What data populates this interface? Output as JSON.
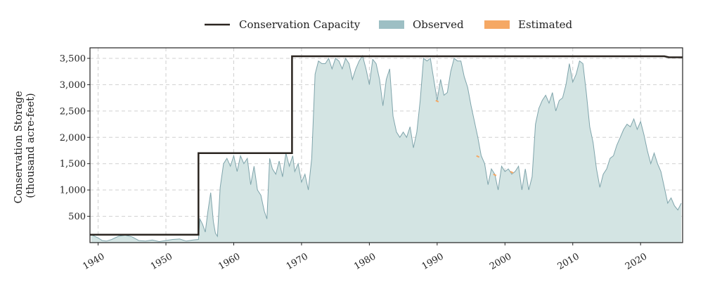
{
  "chart_data": {
    "type": "area",
    "title": "",
    "xlabel": "",
    "ylabel": [
      "Conservation Storage",
      "(thousand acre-feet)"
    ],
    "xlim": [
      1938.8,
      2026.2
    ],
    "ylim": [
      0,
      3700
    ],
    "xticks": [
      1940,
      1950,
      1960,
      1970,
      1980,
      1990,
      2000,
      2010,
      2020
    ],
    "xtick_labels": [
      "1940",
      "1950",
      "1960",
      "1970",
      "1980",
      "1990",
      "2000",
      "2010",
      "2020"
    ],
    "yticks": [
      500,
      1000,
      1500,
      2000,
      2500,
      3000,
      3500
    ],
    "ytick_labels": [
      "500",
      "1,000",
      "1,500",
      "2,000",
      "2,500",
      "3,000",
      "3,500"
    ],
    "grid": true,
    "legend_position": "top-center",
    "series": [
      {
        "name": "Conservation Capacity",
        "kind": "step-line",
        "color": "#2b2520",
        "x": [
          1938.8,
          1954.8,
          1954.8,
          1968.6,
          1968.6,
          2023.5,
          2024.2,
          2026.2
        ],
        "y": [
          150,
          150,
          1700,
          1700,
          3540,
          3540,
          3520,
          3520
        ]
      },
      {
        "name": "Observed",
        "kind": "area",
        "color": "#9dbfc4",
        "fill": "#d3e4e3",
        "x": [
          1939.0,
          1940.0,
          1940.6,
          1941.2,
          1942.0,
          1943.0,
          1944.0,
          1945.0,
          1946.0,
          1947.0,
          1948.0,
          1949.0,
          1950.0,
          1951.0,
          1952.0,
          1953.0,
          1954.0,
          1954.8,
          1955.0,
          1955.4,
          1955.8,
          1956.2,
          1956.6,
          1957.0,
          1957.3,
          1957.6,
          1958.0,
          1958.5,
          1959.0,
          1959.5,
          1960.0,
          1960.5,
          1961.0,
          1961.5,
          1962.0,
          1962.5,
          1963.0,
          1963.5,
          1964.0,
          1964.5,
          1964.9,
          1965.3,
          1965.7,
          1966.2,
          1966.7,
          1967.2,
          1967.7,
          1968.2,
          1968.7,
          1969.0,
          1969.5,
          1970.0,
          1970.5,
          1971.0,
          1971.5,
          1972.0,
          1972.5,
          1973.0,
          1973.5,
          1974.0,
          1974.5,
          1975.0,
          1975.5,
          1976.0,
          1976.5,
          1977.0,
          1977.5,
          1978.0,
          1978.5,
          1979.0,
          1979.5,
          1980.0,
          1980.5,
          1981.0,
          1981.5,
          1982.0,
          1982.5,
          1983.0,
          1983.5,
          1984.0,
          1984.5,
          1985.0,
          1985.5,
          1986.0,
          1986.5,
          1987.0,
          1987.5,
          1988.0,
          1988.5,
          1989.0,
          1989.5,
          1990.0,
          1990.5,
          1991.0,
          1991.5,
          1992.0,
          1992.5,
          1993.0,
          1993.5,
          1994.0,
          1994.5,
          1995.0,
          1995.5,
          1996.0,
          1996.5,
          1997.0,
          1997.5,
          1998.0,
          1998.5,
          1999.0,
          1999.5,
          2000.0,
          2000.5,
          2001.0,
          2001.5,
          2002.0,
          2002.5,
          2003.0,
          2003.5,
          2004.0,
          2004.5,
          2005.0,
          2005.5,
          2006.0,
          2006.5,
          2007.0,
          2007.5,
          2008.0,
          2008.5,
          2009.0,
          2009.5,
          2010.0,
          2010.5,
          2011.0,
          2011.5,
          2012.0,
          2012.5,
          2013.0,
          2013.5,
          2014.0,
          2014.5,
          2015.0,
          2015.5,
          2016.0,
          2016.5,
          2017.0,
          2017.5,
          2018.0,
          2018.5,
          2019.0,
          2019.5,
          2020.0,
          2020.5,
          2021.0,
          2021.5,
          2022.0,
          2022.5,
          2023.0,
          2023.5,
          2024.0,
          2024.5,
          2025.0,
          2025.5,
          2026.0
        ],
        "y": [
          150,
          90,
          40,
          30,
          60,
          120,
          140,
          110,
          40,
          30,
          50,
          20,
          40,
          60,
          70,
          30,
          50,
          60,
          450,
          350,
          200,
          600,
          950,
          400,
          180,
          120,
          1050,
          1500,
          1600,
          1450,
          1650,
          1350,
          1650,
          1500,
          1600,
          1100,
          1450,
          1000,
          900,
          600,
          450,
          1600,
          1400,
          1300,
          1550,
          1250,
          1700,
          1450,
          1650,
          1350,
          1500,
          1150,
          1300,
          1000,
          1600,
          3200,
          3450,
          3400,
          3400,
          3500,
          3300,
          3500,
          3450,
          3300,
          3500,
          3400,
          3100,
          3300,
          3450,
          3550,
          3300,
          3000,
          3480,
          3400,
          3100,
          2600,
          3100,
          3300,
          2400,
          2100,
          2000,
          2100,
          2000,
          2200,
          1800,
          2100,
          2700,
          3500,
          3450,
          3500,
          3100,
          2700,
          3100,
          2800,
          2850,
          3250,
          3500,
          3450,
          3450,
          3150,
          2950,
          2600,
          2300,
          2000,
          1650,
          1500,
          1100,
          1400,
          1300,
          1000,
          1450,
          1350,
          1400,
          1300,
          1350,
          1450,
          1000,
          1400,
          1000,
          1250,
          2250,
          2550,
          2700,
          2800,
          2650,
          2850,
          2500,
          2700,
          2750,
          3000,
          3400,
          3050,
          3200,
          3450,
          3400,
          2850,
          2200,
          1900,
          1400,
          1050,
          1300,
          1400,
          1600,
          1650,
          1850,
          2000,
          2150,
          2250,
          2200,
          2350,
          2150,
          2300,
          2050,
          1750,
          1500,
          1700,
          1500,
          1350,
          1050,
          750,
          850,
          700,
          620,
          750
        ]
      },
      {
        "name": "Estimated",
        "kind": "area",
        "color": "#f5a864",
        "x": [
          1990.0,
          1996.0,
          1998.5,
          2001.0
        ],
        "y": [
          2700,
          1650,
          1300,
          1350
        ]
      }
    ]
  }
}
